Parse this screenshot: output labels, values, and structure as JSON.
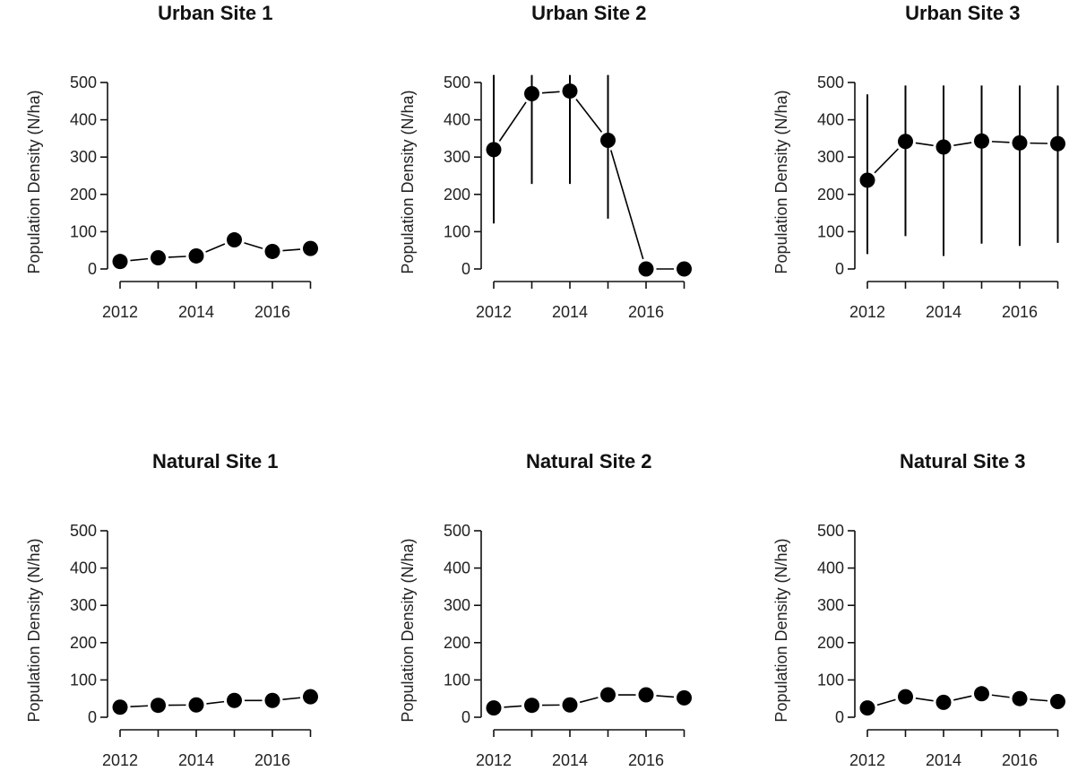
{
  "chart_data": [
    {
      "type": "scatter",
      "title": "Urban Site 1",
      "ylabel": "Population Density (N/ha)",
      "xlabel": "",
      "ylim": [
        0,
        500
      ],
      "yticks": [
        0,
        100,
        200,
        300,
        400,
        500
      ],
      "xticks": [
        2012,
        2014,
        2016
      ],
      "x": [
        2012,
        2013,
        2014,
        2015,
        2016,
        2017
      ],
      "y": [
        20,
        30,
        35,
        78,
        47,
        55
      ],
      "err_low": [
        null,
        null,
        null,
        null,
        null,
        null
      ],
      "err_high": [
        null,
        null,
        null,
        null,
        null,
        null
      ]
    },
    {
      "type": "scatter",
      "title": "Urban Site 2",
      "ylabel": "Population Density (N/ha)",
      "xlabel": "",
      "ylim": [
        0,
        500
      ],
      "yticks": [
        0,
        100,
        200,
        300,
        400,
        500
      ],
      "xticks": [
        2012,
        2014,
        2016
      ],
      "x": [
        2012,
        2013,
        2014,
        2015,
        2016,
        2017
      ],
      "y": [
        320,
        470,
        477,
        345,
        0,
        0
      ],
      "err_low": [
        122,
        228,
        228,
        135,
        null,
        null
      ],
      "err_high": [
        520,
        520,
        520,
        520,
        null,
        null
      ]
    },
    {
      "type": "scatter",
      "title": "Urban Site 3",
      "ylabel": "Population Density (N/ha)",
      "xlabel": "",
      "ylim": [
        0,
        500
      ],
      "yticks": [
        0,
        100,
        200,
        300,
        400,
        500
      ],
      "xticks": [
        2012,
        2014,
        2016
      ],
      "x": [
        2012,
        2013,
        2014,
        2015,
        2016,
        2017
      ],
      "y": [
        238,
        342,
        327,
        343,
        338,
        336
      ],
      "err_low": [
        40,
        88,
        35,
        68,
        62,
        70
      ],
      "err_high": [
        468,
        492,
        492,
        492,
        492,
        492
      ]
    },
    {
      "type": "scatter",
      "title": "Natural Site 1",
      "ylabel": "Population Density (N/ha)",
      "xlabel": "",
      "ylim": [
        0,
        500
      ],
      "yticks": [
        0,
        100,
        200,
        300,
        400,
        500
      ],
      "xticks": [
        2012,
        2014,
        2016
      ],
      "x": [
        2012,
        2013,
        2014,
        2015,
        2016,
        2017
      ],
      "y": [
        27,
        32,
        33,
        45,
        45,
        55
      ],
      "err_low": [
        null,
        null,
        null,
        null,
        33,
        38
      ],
      "err_high": [
        null,
        null,
        null,
        null,
        58,
        75
      ]
    },
    {
      "type": "scatter",
      "title": "Natural Site 2",
      "ylabel": "Population Density (N/ha)",
      "xlabel": "",
      "ylim": [
        0,
        500
      ],
      "yticks": [
        0,
        100,
        200,
        300,
        400,
        500
      ],
      "xticks": [
        2012,
        2014,
        2016
      ],
      "x": [
        2012,
        2013,
        2014,
        2015,
        2016,
        2017
      ],
      "y": [
        25,
        32,
        33,
        60,
        60,
        52
      ],
      "err_low": [
        null,
        null,
        null,
        null,
        null,
        null
      ],
      "err_high": [
        null,
        null,
        null,
        null,
        null,
        null
      ]
    },
    {
      "type": "scatter",
      "title": "Natural Site 3",
      "ylabel": "Population Density (N/ha)",
      "xlabel": "",
      "ylim": [
        0,
        500
      ],
      "yticks": [
        0,
        100,
        200,
        300,
        400,
        500
      ],
      "xticks": [
        2012,
        2014,
        2016
      ],
      "x": [
        2012,
        2013,
        2014,
        2015,
        2016,
        2017
      ],
      "y": [
        25,
        55,
        40,
        63,
        50,
        42
      ],
      "err_low": [
        null,
        null,
        null,
        null,
        null,
        null
      ],
      "err_high": [
        null,
        null,
        null,
        null,
        null,
        null
      ]
    }
  ]
}
